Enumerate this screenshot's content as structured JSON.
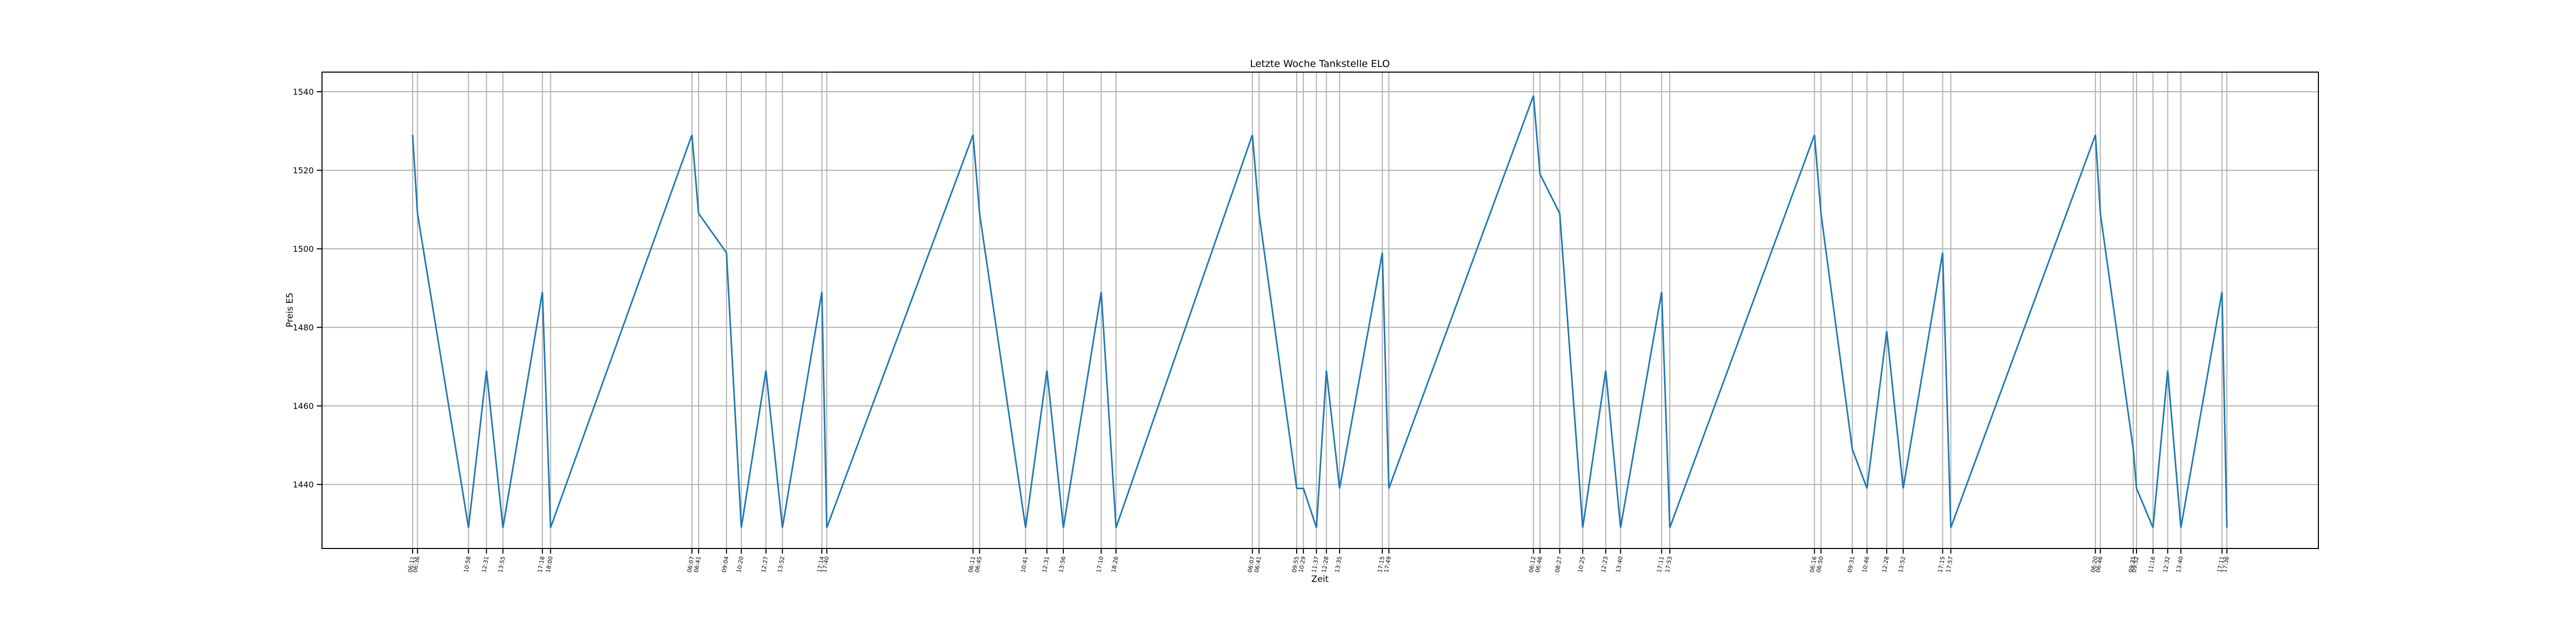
{
  "chart_data": {
    "type": "line",
    "title": "Letzte Woche Tankstelle ELO",
    "xlabel": "Zeit",
    "ylabel": "Preis E5",
    "color": "#1f77b4",
    "grid": true,
    "x": [
      6.18,
      6.6,
      10.97,
      12.51,
      13.92,
      17.3,
      18.0,
      30.11,
      30.68,
      33.07,
      34.34,
      36.45,
      37.86,
      41.24,
      41.66,
      54.19,
      54.75,
      58.69,
      60.52,
      61.93,
      65.17,
      66.44,
      78.12,
      78.69,
      81.92,
      82.49,
      83.61,
      84.46,
      85.59,
      89.25,
      89.81,
      102.2,
      102.76,
      104.45,
      106.42,
      108.39,
      109.66,
      113.18,
      113.88,
      126.27,
      126.83,
      129.51,
      130.77,
      132.46,
      133.87,
      137.25,
      137.95,
      150.34,
      150.76,
      153.58,
      153.86,
      155.27,
      156.53,
      157.66,
      161.18,
      161.6
    ],
    "values": [
      1529,
      1509,
      1429,
      1469,
      1429,
      1489,
      1429,
      1529,
      1509,
      1499,
      1429,
      1469,
      1429,
      1489,
      1429,
      1529,
      1509,
      1429,
      1469,
      1429,
      1489,
      1429,
      1529,
      1509,
      1439,
      1439,
      1429,
      1469,
      1439,
      1499,
      1439,
      1539,
      1519,
      1509,
      1429,
      1469,
      1429,
      1489,
      1429,
      1529,
      1509,
      1449,
      1439,
      1479,
      1439,
      1499,
      1429,
      1529,
      1509,
      1449,
      1439,
      1429,
      1469,
      1429,
      1489,
      1429
    ],
    "xlim": [
      -1.58,
      169.44
    ],
    "ylim": [
      1423.7,
      1545
    ],
    "yticks": [
      1440,
      1460,
      1480,
      1500,
      1520,
      1540
    ],
    "xticks": [
      {
        "value": 6.18,
        "label": "06:11"
      },
      {
        "value": 6.6,
        "label": "06:36"
      },
      {
        "value": 10.97,
        "label": "10:58"
      },
      {
        "value": 12.51,
        "label": "12:31"
      },
      {
        "value": 13.92,
        "label": "13:55"
      },
      {
        "value": 17.3,
        "label": "17:18"
      },
      {
        "value": 18.0,
        "label": "18:00"
      },
      {
        "value": 30.11,
        "label": "06:07"
      },
      {
        "value": 30.68,
        "label": "06:41"
      },
      {
        "value": 33.07,
        "label": "09:04"
      },
      {
        "value": 34.34,
        "label": "10:20"
      },
      {
        "value": 36.45,
        "label": "12:27"
      },
      {
        "value": 37.86,
        "label": "13:52"
      },
      {
        "value": 41.24,
        "label": "17:14"
      },
      {
        "value": 41.66,
        "label": "17:40"
      },
      {
        "value": 54.19,
        "label": "06:11"
      },
      {
        "value": 54.75,
        "label": "06:45"
      },
      {
        "value": 58.69,
        "label": "10:41"
      },
      {
        "value": 60.52,
        "label": "12:31"
      },
      {
        "value": 61.93,
        "label": "13:56"
      },
      {
        "value": 65.17,
        "label": "17:10"
      },
      {
        "value": 66.44,
        "label": "18:26"
      },
      {
        "value": 78.12,
        "label": "06:07"
      },
      {
        "value": 78.69,
        "label": "06:41"
      },
      {
        "value": 81.92,
        "label": "09:55"
      },
      {
        "value": 82.49,
        "label": "10:29"
      },
      {
        "value": 83.61,
        "label": "11:37"
      },
      {
        "value": 84.46,
        "label": "12:28"
      },
      {
        "value": 85.59,
        "label": "13:35"
      },
      {
        "value": 89.25,
        "label": "17:15"
      },
      {
        "value": 89.81,
        "label": "17:49"
      },
      {
        "value": 102.2,
        "label": "06:12"
      },
      {
        "value": 102.76,
        "label": "06:46"
      },
      {
        "value": 104.45,
        "label": "08:27"
      },
      {
        "value": 106.42,
        "label": "10:25"
      },
      {
        "value": 108.39,
        "label": "12:23"
      },
      {
        "value": 109.66,
        "label": "13:40"
      },
      {
        "value": 113.18,
        "label": "17:11"
      },
      {
        "value": 113.88,
        "label": "17:53"
      },
      {
        "value": 126.27,
        "label": "06:16"
      },
      {
        "value": 126.83,
        "label": "06:50"
      },
      {
        "value": 129.51,
        "label": "09:31"
      },
      {
        "value": 130.77,
        "label": "10:46"
      },
      {
        "value": 132.46,
        "label": "12:28"
      },
      {
        "value": 133.87,
        "label": "13:52"
      },
      {
        "value": 137.25,
        "label": "17:15"
      },
      {
        "value": 137.95,
        "label": "17:57"
      },
      {
        "value": 150.34,
        "label": "06:20"
      },
      {
        "value": 150.76,
        "label": "06:46"
      },
      {
        "value": 153.58,
        "label": "09:35"
      },
      {
        "value": 153.86,
        "label": "09:52"
      },
      {
        "value": 155.27,
        "label": "11:16"
      },
      {
        "value": 156.53,
        "label": "12:32"
      },
      {
        "value": 157.66,
        "label": "13:40"
      },
      {
        "value": 161.18,
        "label": "17:11"
      },
      {
        "value": 161.6,
        "label": "17:36"
      }
    ]
  }
}
